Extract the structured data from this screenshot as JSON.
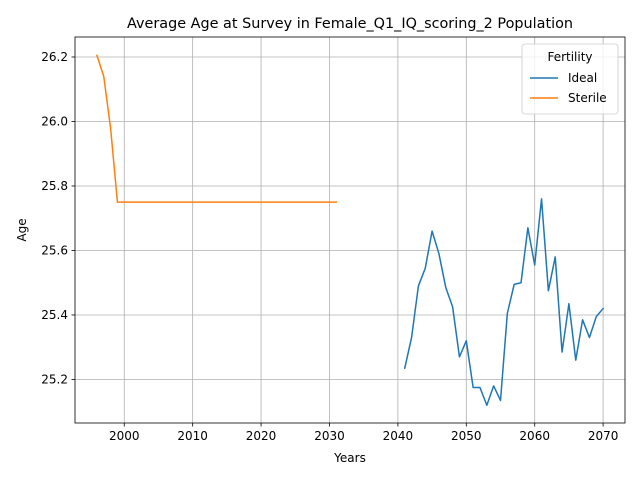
{
  "chart_data": {
    "type": "line",
    "title": "Average Age at Survey in Female_Q1_IQ_scoring_2 Population",
    "xlabel": "Years",
    "ylabel": "Age",
    "xlim": [
      1992.8,
      2073.2
    ],
    "ylim": [
      25.065,
      26.262
    ],
    "xticks": [
      2000,
      2010,
      2020,
      2030,
      2040,
      2050,
      2060,
      2070
    ],
    "yticks": [
      25.2,
      25.4,
      25.6,
      25.8,
      26.0,
      26.2
    ],
    "grid": true,
    "legend": {
      "title": "Fertility",
      "placement": "top-right"
    },
    "series": [
      {
        "name": "Ideal",
        "color": "#1f77b4",
        "x": [
          2041,
          2042,
          2043,
          2044,
          2045,
          2046,
          2047,
          2048,
          2049,
          2050,
          2051,
          2052,
          2053,
          2054,
          2055,
          2056,
          2057,
          2058,
          2059,
          2060,
          2061,
          2062,
          2063,
          2064,
          2065,
          2066,
          2067,
          2068,
          2069,
          2070
        ],
        "y": [
          25.235,
          25.33,
          25.49,
          25.545,
          25.66,
          25.59,
          25.485,
          25.425,
          25.27,
          25.32,
          25.175,
          25.175,
          25.12,
          25.18,
          25.135,
          25.405,
          25.495,
          25.5,
          25.67,
          25.555,
          25.76,
          25.475,
          25.58,
          25.285,
          25.435,
          25.26,
          25.385,
          25.33,
          25.395,
          25.42
        ]
      },
      {
        "name": "Sterile",
        "color": "#ff7f0e",
        "x": [
          1996,
          1997,
          1998,
          1999,
          2000,
          2005,
          2010,
          2015,
          2020,
          2025,
          2031
        ],
        "y": [
          26.205,
          26.14,
          25.98,
          25.75,
          25.75,
          25.75,
          25.75,
          25.75,
          25.75,
          25.75,
          25.75
        ]
      }
    ]
  }
}
